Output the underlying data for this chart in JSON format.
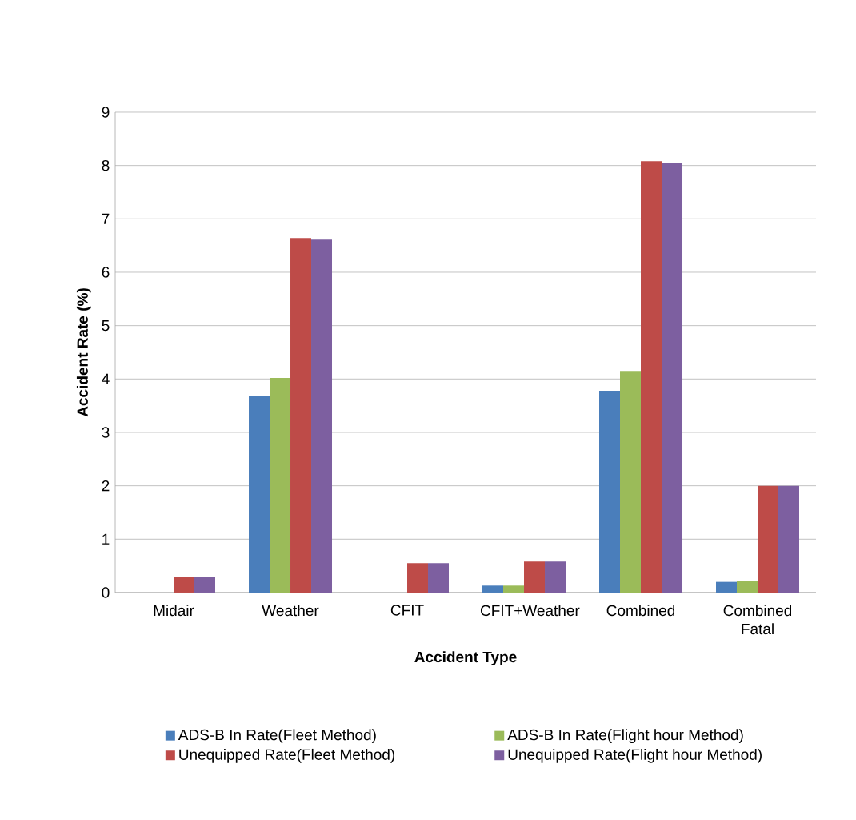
{
  "chart_data": {
    "type": "bar",
    "xlabel": "Accident Type",
    "ylabel": "Accident Rate (%)",
    "categories": [
      "Midair",
      "Weather",
      "CFIT",
      "CFIT+Weather",
      "Combined",
      "Combined Fatal"
    ],
    "series": [
      {
        "name": "ADS-B In Rate(Fleet Method)",
        "color": "#4a7ebb",
        "values": [
          0,
          3.68,
          0,
          0.13,
          3.78,
          0.2
        ]
      },
      {
        "name": "ADS-B In Rate(Flight hour Method)",
        "color": "#9bbb59",
        "values": [
          0,
          4.02,
          0,
          0.13,
          4.15,
          0.22
        ]
      },
      {
        "name": "Unequipped Rate(Fleet Method)",
        "color": "#be4b48",
        "values": [
          0.3,
          6.64,
          0.55,
          0.58,
          8.08,
          2.0
        ]
      },
      {
        "name": "Unequipped Rate(Flight hour Method)",
        "color": "#7d5fa0",
        "values": [
          0.3,
          6.61,
          0.55,
          0.58,
          8.05,
          2.0
        ]
      }
    ],
    "ylim": [
      0,
      9
    ],
    "yticks": [
      0,
      1,
      2,
      3,
      4,
      5,
      6,
      7,
      8,
      9
    ],
    "grid": "y",
    "legend": "bottom"
  }
}
